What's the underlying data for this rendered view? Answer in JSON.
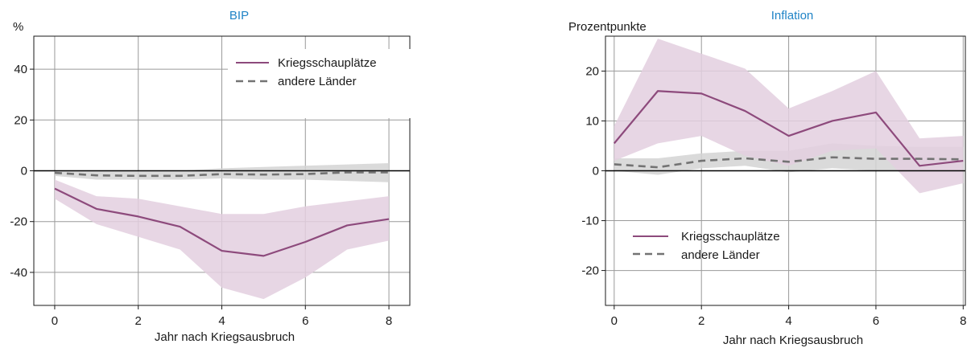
{
  "colors": {
    "primary": "#8d4a7c",
    "primary_band": "#e3cfdf",
    "secondary": "#737373",
    "secondary_band": "#d3d3d3",
    "title": "#1f83c6"
  },
  "chart_data": [
    {
      "type": "line",
      "title": "BIP",
      "unit": "%",
      "xlabel": "Jahr nach Kriegsausbruch",
      "ylabel": "",
      "x": [
        0,
        1,
        2,
        3,
        4,
        5,
        6,
        7,
        8
      ],
      "xlim": [
        -0.5,
        8.5
      ],
      "ylim": [
        -53,
        53
      ],
      "xticks": [
        0,
        2,
        4,
        6,
        8
      ],
      "yticks": [
        -40,
        -20,
        0,
        20,
        40
      ],
      "ytick_labels": [
        "-40",
        "-20",
        "0",
        "20",
        "40"
      ],
      "grid": true,
      "legend_position": "top-right",
      "series": [
        {
          "name": "Kriegsschauplätze",
          "style": "solid",
          "color": "#8d4a7c",
          "values": [
            -7,
            -15,
            -18,
            -22,
            -31.5,
            -33.5,
            -28,
            -21.5,
            -19
          ],
          "band_upper": [
            -3.5,
            -10,
            -11,
            -14,
            -17,
            -17,
            -14,
            -12,
            -10
          ],
          "band_lower": [
            -11,
            -21,
            -26,
            -31,
            -46,
            -50.5,
            -42,
            -31,
            -27.5
          ]
        },
        {
          "name": "andere Länder",
          "style": "dashed",
          "color": "#737373",
          "values": [
            -0.8,
            -1.8,
            -2,
            -2,
            -1.3,
            -1.5,
            -1.3,
            -0.6,
            -0.6
          ],
          "band_upper": [
            0,
            0,
            0,
            0,
            1,
            1.5,
            2,
            2.5,
            3
          ],
          "band_lower": [
            -2,
            -3.5,
            -3.5,
            -3.5,
            -3,
            -3.5,
            -3.5,
            -4,
            -4.5
          ]
        }
      ]
    },
    {
      "type": "line",
      "title": "Inflation",
      "unit": "Prozentpunkte",
      "xlabel": "Jahr nach Kriegsausbruch",
      "ylabel": "",
      "x": [
        0,
        1,
        2,
        3,
        4,
        5,
        6,
        7,
        8
      ],
      "xlim": [
        -0.2,
        8.05
      ],
      "ylim": [
        -27,
        27
      ],
      "xticks": [
        0,
        2,
        4,
        6,
        8
      ],
      "yticks": [
        -20,
        -10,
        0,
        10,
        20
      ],
      "ytick_labels": [
        "-20",
        "-10",
        "0",
        "10",
        "20"
      ],
      "grid": true,
      "legend_position": "bottom-left",
      "series": [
        {
          "name": "Kriegsschauplätze",
          "style": "solid",
          "color": "#8d4a7c",
          "values": [
            5.5,
            16,
            15.5,
            12,
            7,
            10,
            11.7,
            1,
            2
          ],
          "band_upper": [
            9,
            26.5,
            23.5,
            20.5,
            12.5,
            16,
            20,
            6.5,
            7
          ],
          "band_lower": [
            2,
            5.5,
            7,
            3,
            1,
            4,
            4.5,
            -4.5,
            -2.5
          ]
        },
        {
          "name": "andere Länder",
          "style": "dashed",
          "color": "#737373",
          "values": [
            1.3,
            0.7,
            2,
            2.5,
            1.8,
            2.7,
            2.4,
            2.4,
            2.3
          ],
          "band_upper": [
            2.5,
            2.5,
            3.5,
            4,
            4,
            5.5,
            5,
            4.8,
            4.8
          ],
          "band_lower": [
            0,
            -0.8,
            0.5,
            1,
            -0.3,
            0.5,
            0,
            0,
            0
          ]
        }
      ]
    }
  ]
}
